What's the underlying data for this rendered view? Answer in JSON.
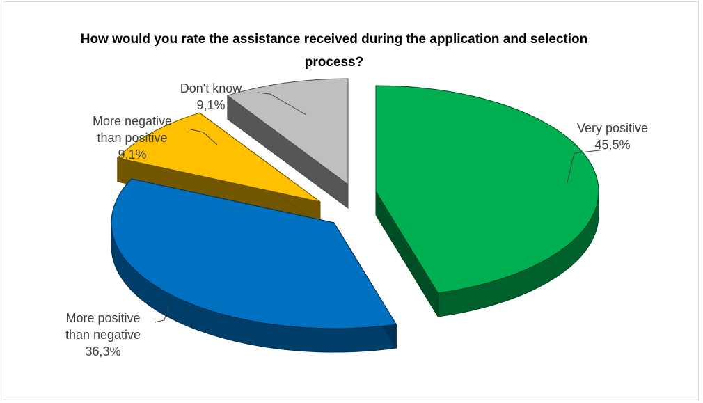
{
  "chart_data": {
    "type": "pie",
    "title": "How would you rate the assistance received during the application and selection process?",
    "slices": [
      {
        "label_lines": [
          "Very positive"
        ],
        "value_label": "45,5%",
        "value": 45.5,
        "color": "#00b050"
      },
      {
        "label_lines": [
          "More positive",
          "than negative"
        ],
        "value_label": "36,3%",
        "value": 36.3,
        "color": "#0070c0"
      },
      {
        "label_lines": [
          "More negative",
          "than positive"
        ],
        "value_label": "9,1%",
        "value": 9.1,
        "color": "#ffc000"
      },
      {
        "label_lines": [
          "Don't know"
        ],
        "value_label": "9,1%",
        "value": 9.1,
        "color": "#bfbfbf"
      }
    ],
    "legend": "none",
    "style": "3d-exploded"
  }
}
